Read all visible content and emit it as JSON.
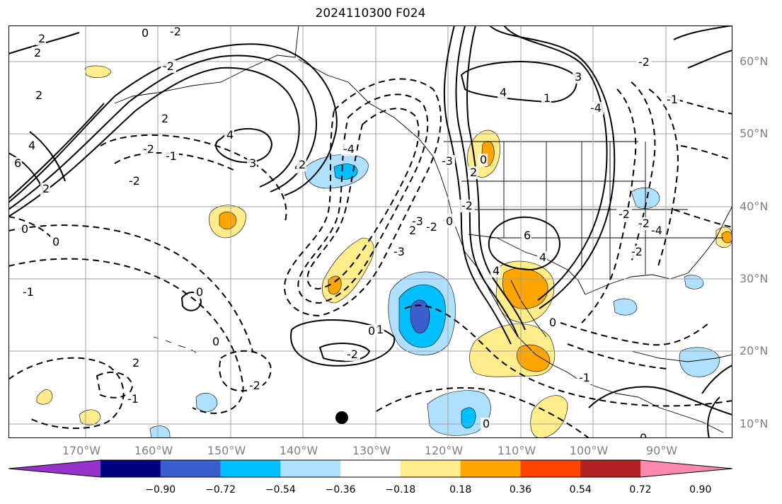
{
  "title": "2024110300 F024",
  "lat_labels": [
    "60°N",
    "50°N",
    "40°N",
    "30°N",
    "20°N",
    "10°N"
  ],
  "lon_labels": [
    "170°W",
    "160°W",
    "150°W",
    "140°W",
    "130°W",
    "120°W",
    "110°W",
    "100°W",
    "90°W"
  ],
  "contour_labels": [
    "2",
    "0",
    "-2",
    "2",
    "2",
    "4",
    "6",
    "-2",
    "-2",
    "-1",
    "0",
    "0",
    "-2",
    "4",
    "4",
    "3",
    "2",
    "2",
    "-1",
    "-3",
    "-3",
    "-2",
    "-4",
    "2",
    "4",
    "-3",
    "1",
    "2",
    "3",
    "-4",
    "-2",
    "-1",
    "-2",
    "-4",
    "-2",
    "-2",
    "0",
    "-4",
    "-2",
    "1",
    "6",
    "4",
    "4",
    "-2",
    "2",
    "0",
    "-1",
    "2",
    "0",
    "0",
    "0",
    "0",
    "-1",
    "0",
    "0",
    "-2"
  ],
  "colorbar": {
    "colors": [
      "#9932cc",
      "#000080",
      "#3a5fcd",
      "#00bfff",
      "#afe1ff",
      "#ffffff",
      "#ffec8b",
      "#ffa500",
      "#ff4500",
      "#b22222",
      "#ff88b0"
    ],
    "tick_labels": [
      "−0.90",
      "−0.72",
      "−0.54",
      "−0.36",
      "−0.18",
      "0.18",
      "0.36",
      "0.54",
      "0.72",
      "0.90"
    ]
  },
  "colors": {
    "grid": "#a0a0a0",
    "contour": "#000000",
    "axis_text": "#808080"
  }
}
